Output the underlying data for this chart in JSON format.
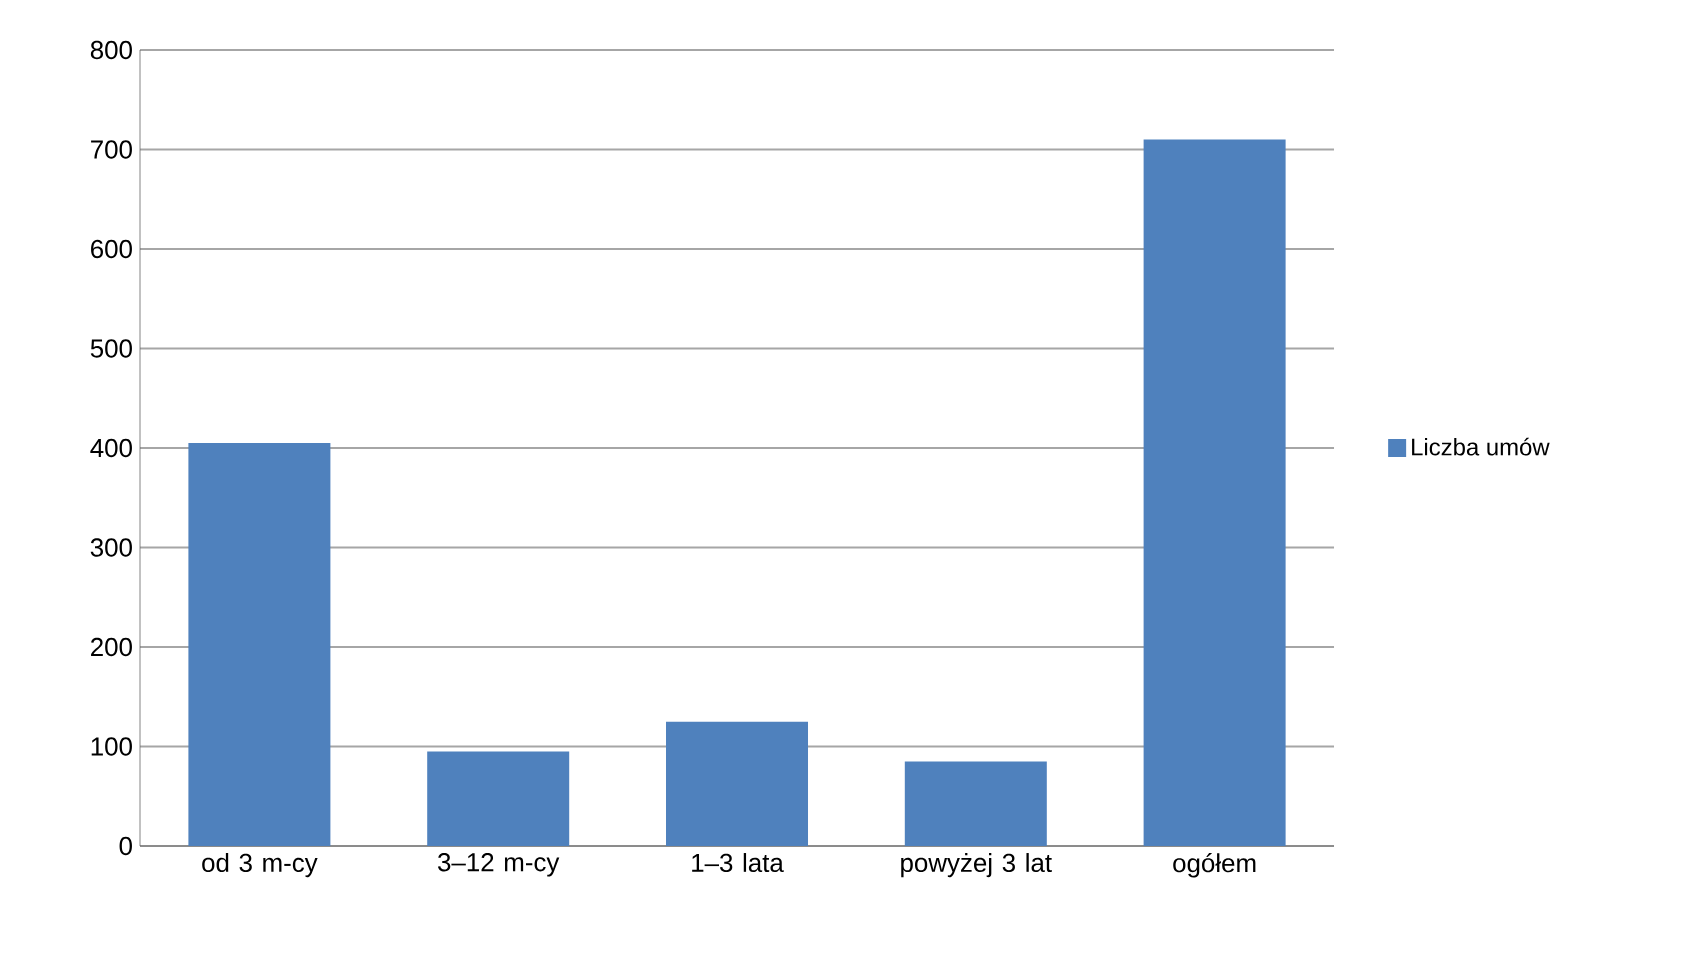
{
  "chart_data": {
    "type": "bar",
    "categories": [
      "od 3 m-cy",
      "3–12 m-cy",
      "1–3 lata",
      "powyżej 3 lat",
      "ogółem"
    ],
    "series": [
      {
        "name": "Liczba umów",
        "color": "#4f81bd",
        "values": [
          405,
          95,
          125,
          85,
          710
        ]
      }
    ],
    "ylim": [
      0,
      800
    ],
    "yticks": [
      0,
      100,
      200,
      300,
      400,
      500,
      600,
      700,
      800
    ],
    "grid": "y",
    "legend": "right"
  }
}
